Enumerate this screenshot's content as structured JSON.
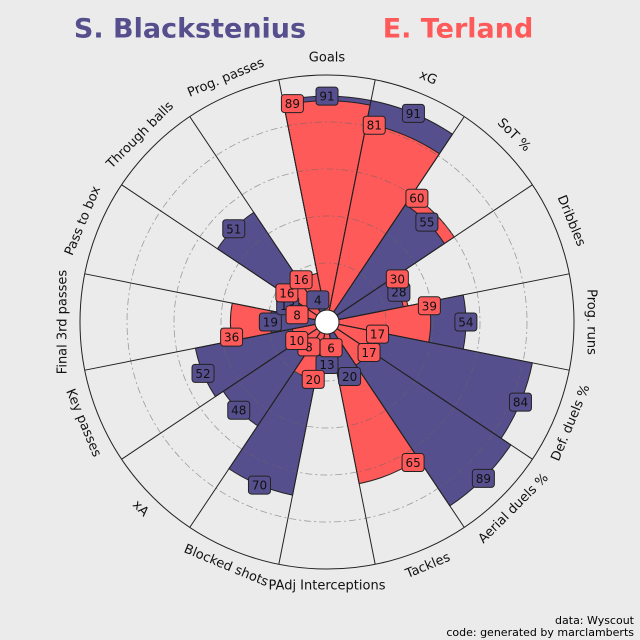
{
  "chart_data": {
    "type": "pizza",
    "categories": [
      "Goals",
      "xG",
      "SoT %",
      "Dribbles",
      "Prog. runs",
      "Def. duels %",
      "Aerial duels %",
      "Tackles",
      "PAdj Interceptions",
      "Blocked shots",
      "xA",
      "Key passes",
      "Final 3rd passes",
      "Pass to box",
      "Through balls",
      "Prog. passes"
    ],
    "series": [
      {
        "name": "S. Blackstenius",
        "color": "#564f8e",
        "values": [
          91,
          91,
          55,
          28,
          54,
          84,
          89,
          20,
          13,
          70,
          48,
          52,
          19,
          13,
          51,
          4
        ]
      },
      {
        "name": "E. Terland",
        "color": "#ff5a5a",
        "values": [
          89,
          81,
          60,
          30,
          39,
          17,
          17,
          65,
          6,
          20,
          8,
          10,
          36,
          8,
          16,
          16
        ]
      }
    ],
    "rlim": [
      0,
      100
    ],
    "rticks": [
      20,
      40,
      60,
      80,
      100
    ],
    "grid": true,
    "credits": [
      "data: Wyscout",
      "code: generated by marclamberts"
    ]
  }
}
